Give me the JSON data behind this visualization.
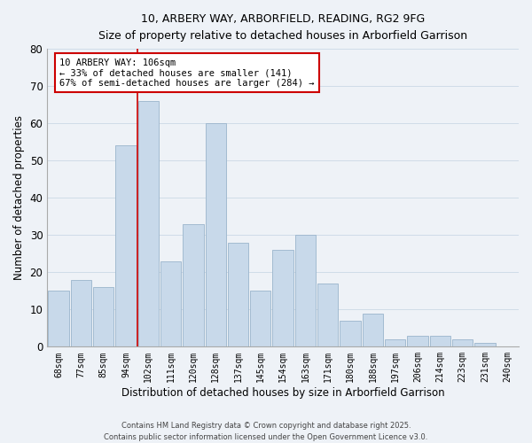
{
  "title1": "10, ARBERY WAY, ARBORFIELD, READING, RG2 9FG",
  "title2": "Size of property relative to detached houses in Arborfield Garrison",
  "xlabel": "Distribution of detached houses by size in Arborfield Garrison",
  "ylabel": "Number of detached properties",
  "categories": [
    "68sqm",
    "77sqm",
    "85sqm",
    "94sqm",
    "102sqm",
    "111sqm",
    "120sqm",
    "128sqm",
    "137sqm",
    "145sqm",
    "154sqm",
    "163sqm",
    "171sqm",
    "180sqm",
    "188sqm",
    "197sqm",
    "206sqm",
    "214sqm",
    "223sqm",
    "231sqm",
    "240sqm"
  ],
  "values": [
    15,
    18,
    16,
    54,
    66,
    23,
    33,
    60,
    28,
    15,
    26,
    30,
    17,
    7,
    9,
    2,
    3,
    3,
    2,
    1,
    0
  ],
  "bar_color": "#c8d9ea",
  "bar_edge_color": "#9ab4cc",
  "grid_color": "#d0dce8",
  "bg_color": "#eef2f7",
  "vline_color": "#cc0000",
  "annotation_text": "10 ARBERY WAY: 106sqm\n← 33% of detached houses are smaller (141)\n67% of semi-detached houses are larger (284) →",
  "annotation_box_color": "#ffffff",
  "annotation_box_edge": "#cc0000",
  "footer1": "Contains HM Land Registry data © Crown copyright and database right 2025.",
  "footer2": "Contains public sector information licensed under the Open Government Licence v3.0.",
  "ylim": [
    0,
    80
  ],
  "yticks": [
    0,
    10,
    20,
    30,
    40,
    50,
    60,
    70,
    80
  ]
}
